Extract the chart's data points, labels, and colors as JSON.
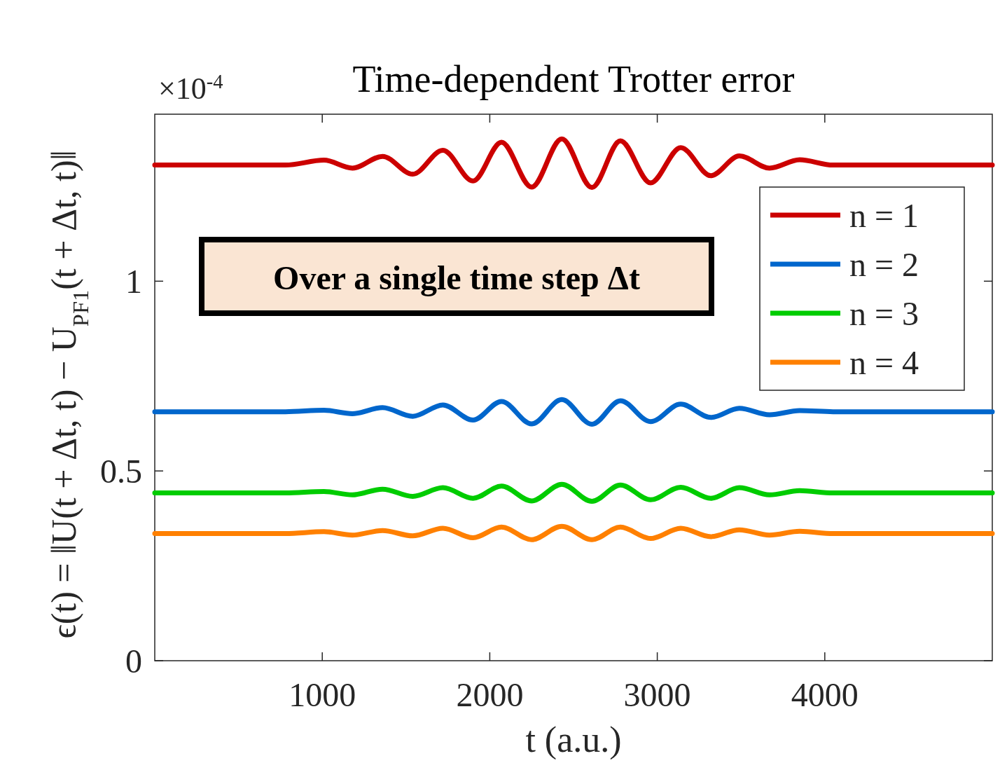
{
  "chart_data": {
    "type": "line",
    "title": "Time-dependent Trotter error",
    "xlabel": "t (a.u.)",
    "ylabel": "ϵ(t) = ‖U(t + Δt, t) − U$_{PF1}$(t + Δt, t)‖",
    "annotations": [
      "×10$^{-4}$",
      "Over a single time step Δt"
    ],
    "x": [
      0,
      780,
      1010,
      1180,
      1360,
      1540,
      1720,
      1900,
      2070,
      2250,
      2430,
      2610,
      2780,
      2960,
      3140,
      3320,
      3490,
      3670,
      3850,
      4050,
      5000
    ],
    "series": [
      {
        "name": "n = 1",
        "color": "#cc0000",
        "values": [
          1.306,
          1.306,
          1.319,
          1.298,
          1.329,
          1.282,
          1.345,
          1.264,
          1.366,
          1.248,
          1.375,
          1.247,
          1.37,
          1.259,
          1.352,
          1.278,
          1.33,
          1.298,
          1.32,
          1.306,
          1.306
        ]
      },
      {
        "name": "n = 2",
        "color": "#0066cc",
        "values": [
          0.656,
          0.656,
          0.66,
          0.651,
          0.667,
          0.644,
          0.674,
          0.634,
          0.683,
          0.624,
          0.688,
          0.623,
          0.685,
          0.63,
          0.676,
          0.641,
          0.665,
          0.648,
          0.659,
          0.656,
          0.656
        ]
      },
      {
        "name": "n = 3",
        "color": "#00cc00",
        "values": [
          0.442,
          0.442,
          0.446,
          0.437,
          0.452,
          0.433,
          0.456,
          0.428,
          0.46,
          0.421,
          0.465,
          0.42,
          0.463,
          0.424,
          0.457,
          0.428,
          0.456,
          0.437,
          0.448,
          0.442,
          0.442
        ]
      },
      {
        "name": "n = 4",
        "color": "#ff8000",
        "values": [
          0.335,
          0.335,
          0.34,
          0.331,
          0.343,
          0.329,
          0.349,
          0.324,
          0.352,
          0.319,
          0.354,
          0.319,
          0.352,
          0.322,
          0.349,
          0.327,
          0.345,
          0.331,
          0.341,
          0.335,
          0.335
        ]
      }
    ],
    "xlim": [
      0,
      5000
    ],
    "xticks": [
      1000,
      2000,
      3000,
      4000
    ],
    "ylim": [
      0,
      1.44
    ],
    "yticks": [
      0,
      0.5,
      1
    ],
    "grid": false,
    "legend": "top right",
    "line_style": "solid",
    "marker": "none"
  }
}
